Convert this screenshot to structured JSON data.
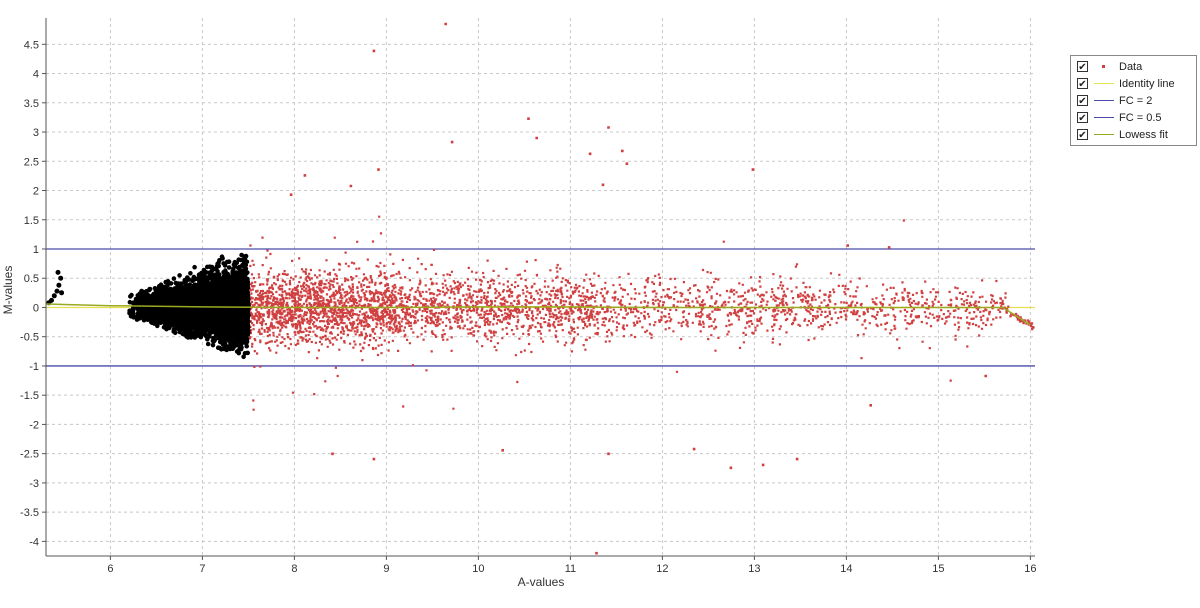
{
  "chart_data": {
    "type": "scatter",
    "title": "",
    "xlabel": "A-values",
    "ylabel": "M-values",
    "xlim": [
      5.3,
      16.05
    ],
    "ylim": [
      -4.25,
      4.95
    ],
    "xticks": [
      6,
      7,
      8,
      9,
      10,
      11,
      12,
      13,
      14,
      15,
      16
    ],
    "yticks": [
      4.5,
      4,
      3.5,
      3,
      2.5,
      2,
      1.5,
      1,
      0.5,
      0,
      -0.5,
      -1,
      -1.5,
      -2,
      -2.5,
      -3,
      -3.5,
      -4
    ],
    "grid": true,
    "legend_position": "right",
    "series": [
      {
        "name": "Data",
        "kind": "points",
        "color": "#d04040",
        "low_intensity_color": "#000000",
        "notable_points": [
          {
            "x": 9.63,
            "y": 4.87
          },
          {
            "x": 8.85,
            "y": 4.41
          },
          {
            "x": 10.53,
            "y": 3.25
          },
          {
            "x": 11.4,
            "y": 3.1
          },
          {
            "x": 9.7,
            "y": 2.85
          },
          {
            "x": 10.62,
            "y": 2.92
          },
          {
            "x": 11.55,
            "y": 2.7
          },
          {
            "x": 11.6,
            "y": 2.48
          },
          {
            "x": 11.2,
            "y": 2.65
          },
          {
            "x": 12.97,
            "y": 2.38
          },
          {
            "x": 8.9,
            "y": 2.38
          },
          {
            "x": 8.1,
            "y": 2.28
          },
          {
            "x": 8.6,
            "y": 2.1
          },
          {
            "x": 7.95,
            "y": 1.95
          },
          {
            "x": 11.34,
            "y": 2.12
          },
          {
            "x": 11.27,
            "y": -4.18
          },
          {
            "x": 12.73,
            "y": -2.72
          },
          {
            "x": 13.08,
            "y": -2.67
          },
          {
            "x": 13.45,
            "y": -2.57
          },
          {
            "x": 12.33,
            "y": -2.4
          },
          {
            "x": 11.4,
            "y": -2.48
          },
          {
            "x": 8.85,
            "y": -2.57
          },
          {
            "x": 8.4,
            "y": -2.48
          },
          {
            "x": 10.25,
            "y": -2.42
          },
          {
            "x": 14.25,
            "y": -1.65
          },
          {
            "x": 15.5,
            "y": -1.15
          },
          {
            "x": 14.0,
            "y": 1.08
          },
          {
            "x": 14.45,
            "y": 1.05
          }
        ]
      },
      {
        "name": "Identity line",
        "kind": "line",
        "color": "#e8e050",
        "y": 0
      },
      {
        "name": "FC = 2",
        "kind": "line",
        "color": "#4a4aa8",
        "y": 1
      },
      {
        "name": "FC = 0.5",
        "kind": "line",
        "color": "#4a4aa8",
        "y": -1
      },
      {
        "name": "Lowess fit",
        "kind": "line",
        "color": "#9aaa20",
        "x": [
          5.3,
          6.0,
          7.0,
          8.0,
          9.0,
          10.0,
          11.0,
          12.0,
          13.0,
          14.0,
          15.0,
          15.7,
          16.0
        ],
        "y": [
          0.06,
          0.03,
          0.01,
          0.0,
          0.0,
          0.01,
          0.01,
          0.0,
          0.0,
          0.0,
          0.0,
          0.0,
          -0.3
        ]
      }
    ]
  },
  "legend": {
    "items": [
      {
        "label": "Data",
        "checked": "✔"
      },
      {
        "label": "Identity line",
        "checked": "✔"
      },
      {
        "label": "FC = 2",
        "checked": "✔"
      },
      {
        "label": "FC = 0.5",
        "checked": "✔"
      },
      {
        "label": "Lowess fit",
        "checked": "✔"
      }
    ]
  }
}
